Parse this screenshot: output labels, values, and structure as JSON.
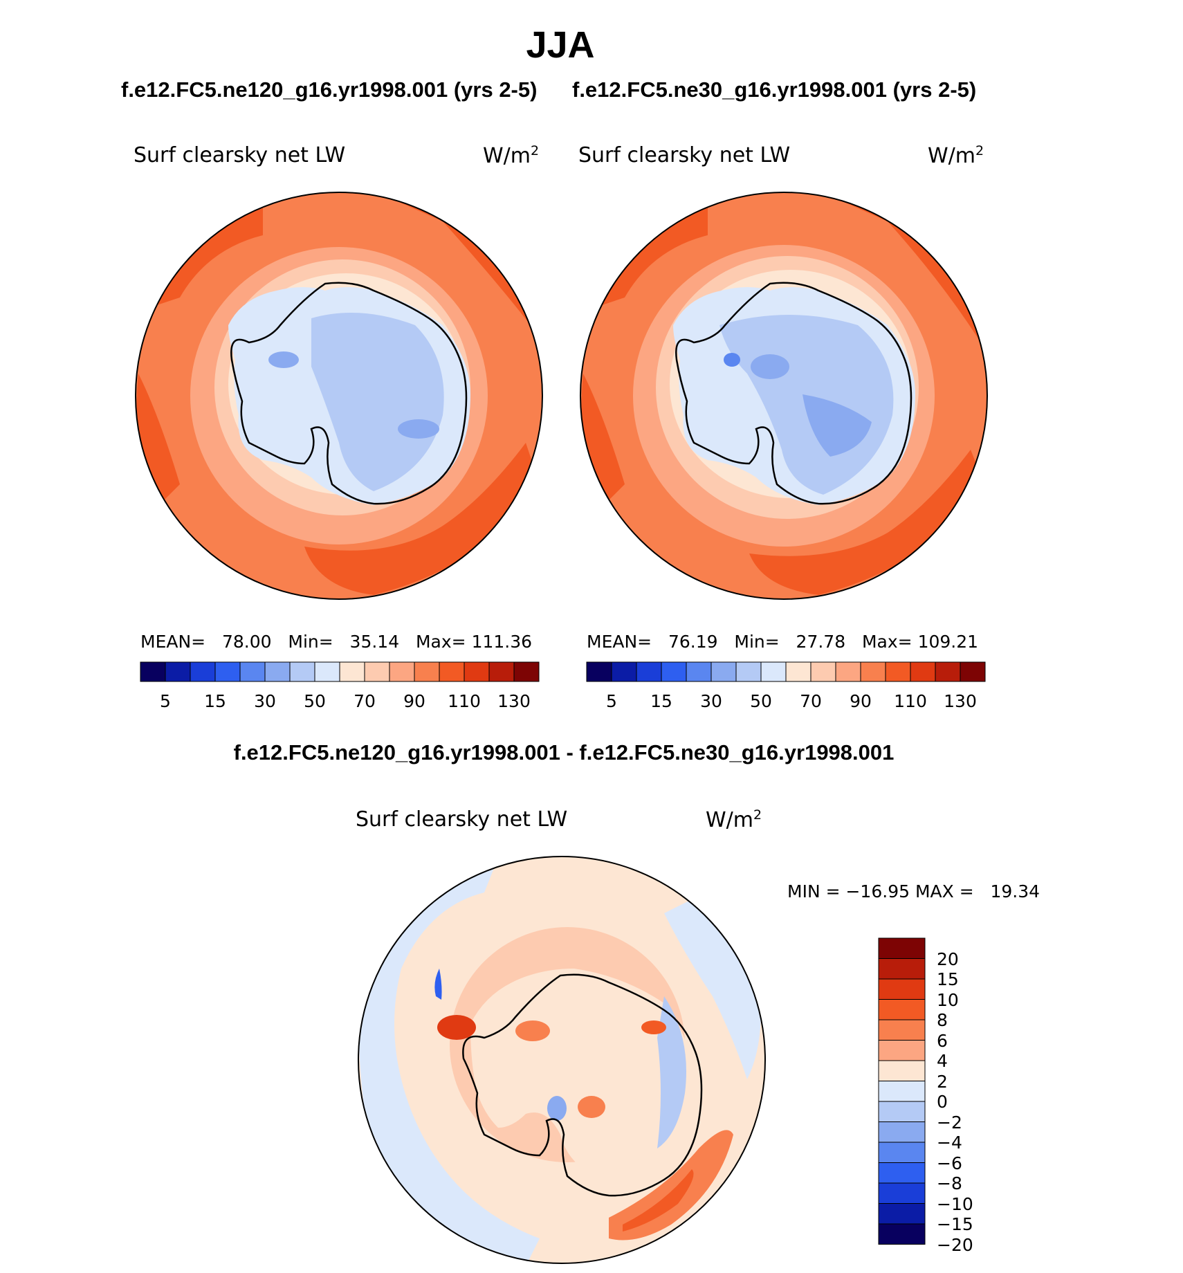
{
  "figure": {
    "title": "JJA",
    "subtitle_left": "f.e12.FC5.ne120_g16.yr1998.001 (yrs 2-5)",
    "subtitle_right": "f.e12.FC5.ne30_g16.yr1998.001 (yrs 2-5)",
    "diff_title": "f.e12.FC5.ne120_g16.yr1998.001 - f.e12.FC5.ne30_g16.yr1998.001"
  },
  "panels": [
    {
      "variable": "Surf clearsky net LW",
      "units_base": "W/m",
      "units_exp": "2",
      "stats": {
        "mean_label": "MEAN=",
        "mean": "78.00",
        "min_label": "Min=",
        "min": "35.14",
        "max_label": "Max=",
        "max": "111.36"
      }
    },
    {
      "variable": "Surf clearsky net LW",
      "units_base": "W/m",
      "units_exp": "2",
      "stats": {
        "mean_label": "MEAN=",
        "mean": "76.19",
        "min_label": "Min=",
        "min": "27.78",
        "max_label": "Max=",
        "max": "109.21"
      }
    }
  ],
  "diff_panel": {
    "variable": "Surf clearsky net LW",
    "units_base": "W/m",
    "units_exp": "2",
    "minmax": "MIN = −16.95 MAX =   19.34"
  },
  "colorbar_abs": {
    "colors": [
      "#08005f",
      "#0b1ca6",
      "#1a3ed8",
      "#2e5ff0",
      "#5a86f0",
      "#8aaaf0",
      "#b4caf5",
      "#dbe8fb",
      "#fde6d3",
      "#fdcbb0",
      "#fca682",
      "#f8804e",
      "#f25a24",
      "#e03a12",
      "#b81d0a",
      "#7d0404"
    ],
    "labels": [
      "5",
      "15",
      "30",
      "50",
      "70",
      "90",
      "110",
      "130"
    ]
  },
  "colorbar_diff": {
    "colors": [
      "#7d0404",
      "#b81d0a",
      "#e03a12",
      "#f25a24",
      "#f8804e",
      "#fca682",
      "#fde6d3",
      "#dbe8fb",
      "#b4caf5",
      "#8aaaf0",
      "#5a86f0",
      "#2e5ff0",
      "#1a3ed8",
      "#0b1ca6",
      "#08005f"
    ],
    "labels": [
      "20",
      "15",
      "10",
      "8",
      "6",
      "4",
      "2",
      "0",
      "−2",
      "−4",
      "−6",
      "−8",
      "−10",
      "−15",
      "−20"
    ]
  }
}
